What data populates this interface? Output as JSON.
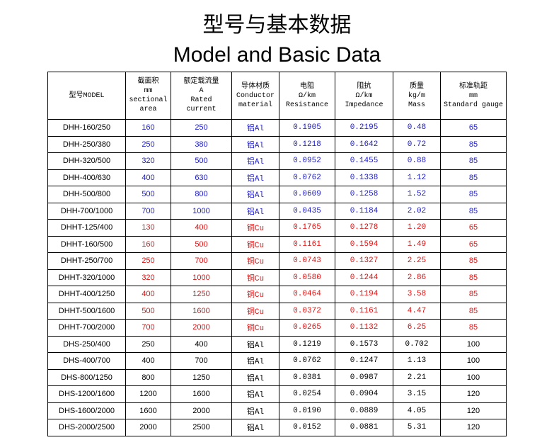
{
  "header": {
    "title": "型号与基本数据",
    "subtitle": "Model and Basic Data"
  },
  "table": {
    "columns": [
      [
        "型号MODEL"
      ],
      [
        "截面积",
        "mm",
        "sectional",
        "area"
      ],
      [
        "额定载流量",
        "A",
        "Rated",
        "current"
      ],
      [
        "导体材质",
        "Conductor",
        "material"
      ],
      [
        "电阻",
        "Ω/km",
        "Resistance"
      ],
      [
        "阻抗",
        "Ω/km",
        "Impedance"
      ],
      [
        "质量",
        "kg/m",
        "Mass"
      ],
      [
        "标准轨距",
        "mm",
        "Standard gauge"
      ]
    ],
    "rows": [
      {
        "color": "#1a1acc",
        "cells": [
          "DHH-160/250",
          "160",
          "250",
          "铝Al",
          "0.1905",
          "0.2195",
          "0.48",
          "65"
        ]
      },
      {
        "color": "#1a1acc",
        "cells": [
          "DHH-250/380",
          "250",
          "380",
          "铝Al",
          "0.1218",
          "0.1642",
          "0.72",
          "85"
        ]
      },
      {
        "color": "#1a1acc",
        "cells": [
          "DHH-320/500",
          "320",
          "500",
          "铝Al",
          "0.0952",
          "0.1455",
          "0.88",
          "85"
        ]
      },
      {
        "color": "#1a1acc",
        "cells": [
          "DHH-400/630",
          "400",
          "630",
          "铝Al",
          "0.0762",
          "0.1338",
          "1.12",
          "85"
        ]
      },
      {
        "color": "#1a1acc",
        "cells": [
          "DHH-500/800",
          "500",
          "800",
          "铝Al",
          "0.0609",
          "0.1258",
          "1.52",
          "85"
        ]
      },
      {
        "color": "#1a1acc",
        "cells": [
          "DHH-700/1000",
          "700",
          "1000",
          "铝Al",
          "0.0435",
          "0.1184",
          "2.02",
          "85"
        ]
      },
      {
        "color": "#e01010",
        "cells": [
          "DHHT-125/400",
          "130",
          "400",
          "铜Cu",
          "0.1765",
          "0.1278",
          "1.20",
          "65"
        ]
      },
      {
        "color": "#e01010",
        "cells": [
          "DHHT-160/500",
          "160",
          "500",
          "铜Cu",
          "0.1161",
          "0.1594",
          "1.49",
          "65"
        ]
      },
      {
        "color": "#e01010",
        "cells": [
          "DHHT-250/700",
          "250",
          "700",
          "铜Cu",
          "0.0743",
          "0.1327",
          "2.25",
          "85"
        ]
      },
      {
        "color": "#e01010",
        "cells": [
          "DHHT-320/1000",
          "320",
          "1000",
          "铜Cu",
          "0.0580",
          "0.1244",
          "2.86",
          "85"
        ]
      },
      {
        "color": "#e01010",
        "cells": [
          "DHHT-400/1250",
          "400",
          "1250",
          "铜Cu",
          "0.0464",
          "0.1194",
          "3.58",
          "85"
        ]
      },
      {
        "color": "#e01010",
        "cells": [
          "DHHT-500/1600",
          "500",
          "1600",
          "铜Cu",
          "0.0372",
          "0.1161",
          "4.47",
          "85"
        ]
      },
      {
        "color": "#e01010",
        "cells": [
          "DHHT-700/2000",
          "700",
          "2000",
          "铜Cu",
          "0.0265",
          "0.1132",
          "6.25",
          "85"
        ]
      },
      {
        "color": "#000000",
        "cells": [
          "DHS-250/400",
          "250",
          "400",
          "铝Al",
          "0.1219",
          "0.1573",
          "0.702",
          "100"
        ]
      },
      {
        "color": "#000000",
        "cells": [
          "DHS-400/700",
          "400",
          "700",
          "铝Al",
          "0.0762",
          "0.1247",
          "1.13",
          "100"
        ]
      },
      {
        "color": "#000000",
        "cells": [
          "DHS-800/1250",
          "800",
          "1250",
          "铝Al",
          "0.0381",
          "0.0987",
          "2.21",
          "100"
        ]
      },
      {
        "color": "#000000",
        "cells": [
          "DHS-1200/1600",
          "1200",
          "1600",
          "铝Al",
          "0.0254",
          "0.0904",
          "3.15",
          "120"
        ]
      },
      {
        "color": "#000000",
        "cells": [
          "DHS-1600/2000",
          "1600",
          "2000",
          "铝Al",
          "0.0190",
          "0.0889",
          "4.05",
          "120"
        ]
      },
      {
        "color": "#000000",
        "cells": [
          "DHS-2000/2500",
          "2000",
          "2500",
          "铝Al",
          "0.0152",
          "0.0881",
          "5.31",
          "120"
        ]
      }
    ]
  }
}
